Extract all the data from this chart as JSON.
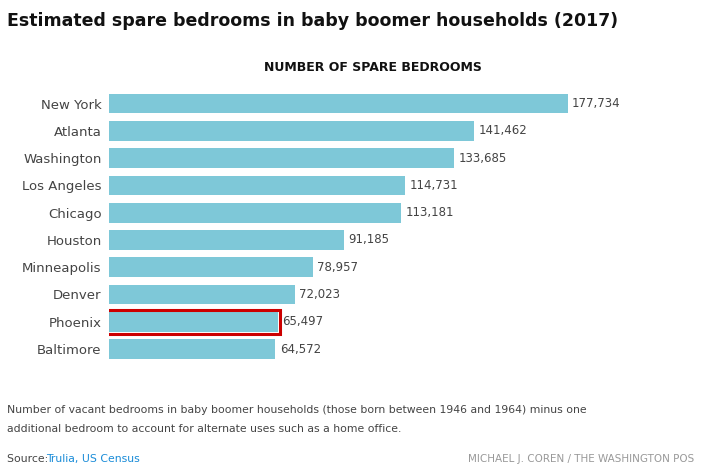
{
  "title": "Estimated spare bedrooms in baby boomer households (2017)",
  "subtitle": "NUMBER OF SPARE BEDROOMS",
  "categories": [
    "New York",
    "Atlanta",
    "Washington",
    "Los Angeles",
    "Chicago",
    "Houston",
    "Minneapolis",
    "Denver",
    "Phoenix",
    "Baltimore"
  ],
  "values": [
    177734,
    141462,
    133685,
    114731,
    113181,
    91185,
    78957,
    72023,
    65497,
    64572
  ],
  "bar_color": "#7ec8d8",
  "highlight_index": 8,
  "highlight_border_color": "#cc0000",
  "text_color": "#444444",
  "label_color": "#444444",
  "subtitle_color": "#111111",
  "title_color": "#111111",
  "footnote_line1": "Number of vacant bedrooms in baby boomer households (those born between 1946 and 1964) minus one",
  "footnote_line2": "additional bedroom to account for alternate uses such as a home office.",
  "source_prefix": "Source: ",
  "source_link": "Trulia, US Census",
  "source_link_color": "#1a8cd8",
  "credit": "MICHAEL J. COREN / THE WASHINGTON POS",
  "background_color": "#ffffff",
  "xlim_max": 205000
}
